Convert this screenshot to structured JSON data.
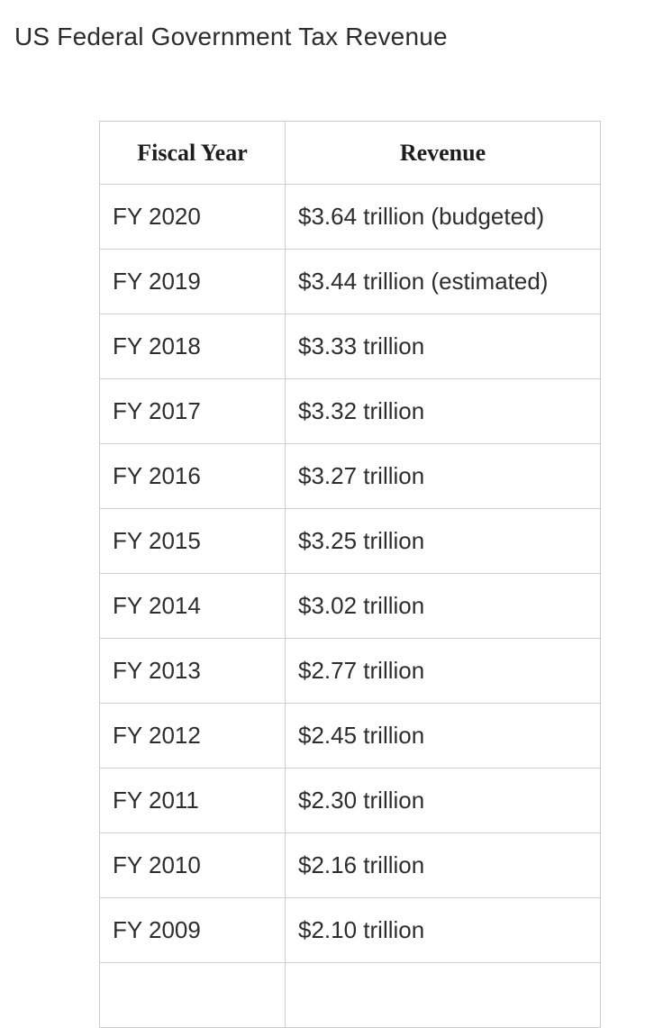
{
  "page": {
    "title": "US Federal Government Tax Revenue"
  },
  "colors": {
    "background": "#ffffff",
    "text": "#2d2d2d",
    "heading_text": "#1e1e1e",
    "border": "#cdcdcd"
  },
  "table": {
    "columns": [
      "Fiscal Year",
      "Revenue"
    ],
    "rows": [
      {
        "fiscal_year": "FY 2020",
        "revenue": "$3.64 trillion (budgeted)"
      },
      {
        "fiscal_year": "FY 2019",
        "revenue": "$3.44 trillion (estimated)"
      },
      {
        "fiscal_year": "FY 2018",
        "revenue": "$3.33 trillion"
      },
      {
        "fiscal_year": "FY 2017",
        "revenue": "$3.32 trillion"
      },
      {
        "fiscal_year": "FY 2016",
        "revenue": "$3.27 trillion"
      },
      {
        "fiscal_year": "FY 2015",
        "revenue": "$3.25 trillion"
      },
      {
        "fiscal_year": "FY 2014",
        "revenue": "$3.02 trillion"
      },
      {
        "fiscal_year": "FY 2013",
        "revenue": "$2.77 trillion"
      },
      {
        "fiscal_year": "FY 2012",
        "revenue": "$2.45 trillion"
      },
      {
        "fiscal_year": "FY 2011",
        "revenue": "$2.30 trillion"
      },
      {
        "fiscal_year": "FY 2010",
        "revenue": "$2.16 trillion"
      },
      {
        "fiscal_year": "FY 2009",
        "revenue": "$2.10 trillion"
      }
    ]
  },
  "chart_data": {
    "type": "table",
    "title": "US Federal Government Tax Revenue",
    "columns": [
      "Fiscal Year",
      "Revenue"
    ],
    "categories": [
      "FY 2020",
      "FY 2019",
      "FY 2018",
      "FY 2017",
      "FY 2016",
      "FY 2015",
      "FY 2014",
      "FY 2013",
      "FY 2012",
      "FY 2011",
      "FY 2010",
      "FY 2009"
    ],
    "values_trillions_usd": [
      3.64,
      3.44,
      3.33,
      3.32,
      3.27,
      3.25,
      3.02,
      2.77,
      2.45,
      2.3,
      2.16,
      2.1
    ],
    "annotations": {
      "FY 2020": "budgeted",
      "FY 2019": "estimated"
    }
  }
}
